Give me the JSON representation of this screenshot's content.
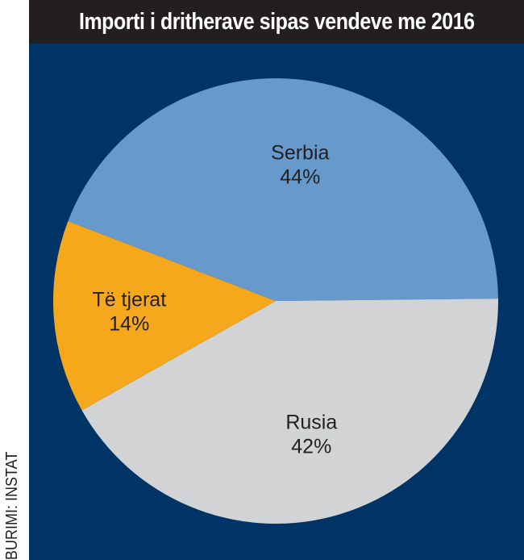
{
  "title": "Importi i dritherave sipas vendeve me 2016",
  "source": "BURIMI: INSTAT",
  "colors": {
    "background": "#003366",
    "title_bar": "#231f20",
    "title_text": "#ffffff",
    "label_text": "#231f20"
  },
  "chart_data": {
    "type": "pie",
    "title": "Importi i dritherave sipas vendeve me 2016",
    "slices": [
      {
        "label": "Serbia",
        "value": 44,
        "value_label": "44%",
        "color": "#6699cc"
      },
      {
        "label": "Rusia",
        "value": 42,
        "value_label": "42%",
        "color": "#d1d3d4"
      },
      {
        "label": "Të tjerat",
        "value": 14,
        "value_label": "14%",
        "color": "#f5a81c"
      }
    ]
  }
}
